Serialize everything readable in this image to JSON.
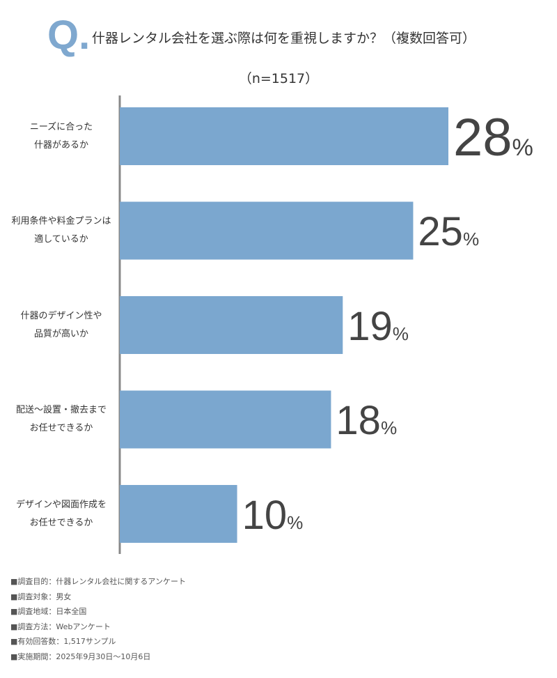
{
  "chart_data": {
    "type": "bar",
    "orientation": "horizontal",
    "title_prefix": "Q.",
    "title": "什器レンタル会社を選ぶ際は何を重視しますか？（複数回答可）",
    "subtitle": "（n=1517）",
    "categories": [
      "ニーズに合った\n什器があるか",
      "利用条件や料金プランは\n適しているか",
      "什器のデザイン性や\n品質が高いか",
      "配送～設置・撤去まで\nお任せできるか",
      "デザインや図面作成を\nお任せできるか"
    ],
    "values": [
      28,
      25,
      19,
      18,
      10
    ],
    "value_labels": [
      "28%",
      "25%",
      "19%",
      "18%",
      "10%"
    ],
    "color": "#7ba7cf",
    "xlim": [
      0,
      35
    ],
    "grid": false,
    "notes": [
      "■調査目的：什器レンタル会社に関するアンケート",
      "■調査対象：男女",
      "■調査地域：日本全国",
      "■調査方法：Webアンケート",
      "■有効回答数：1,517サンプル",
      "■実施期間：2025年9月30日～10月6日"
    ]
  }
}
